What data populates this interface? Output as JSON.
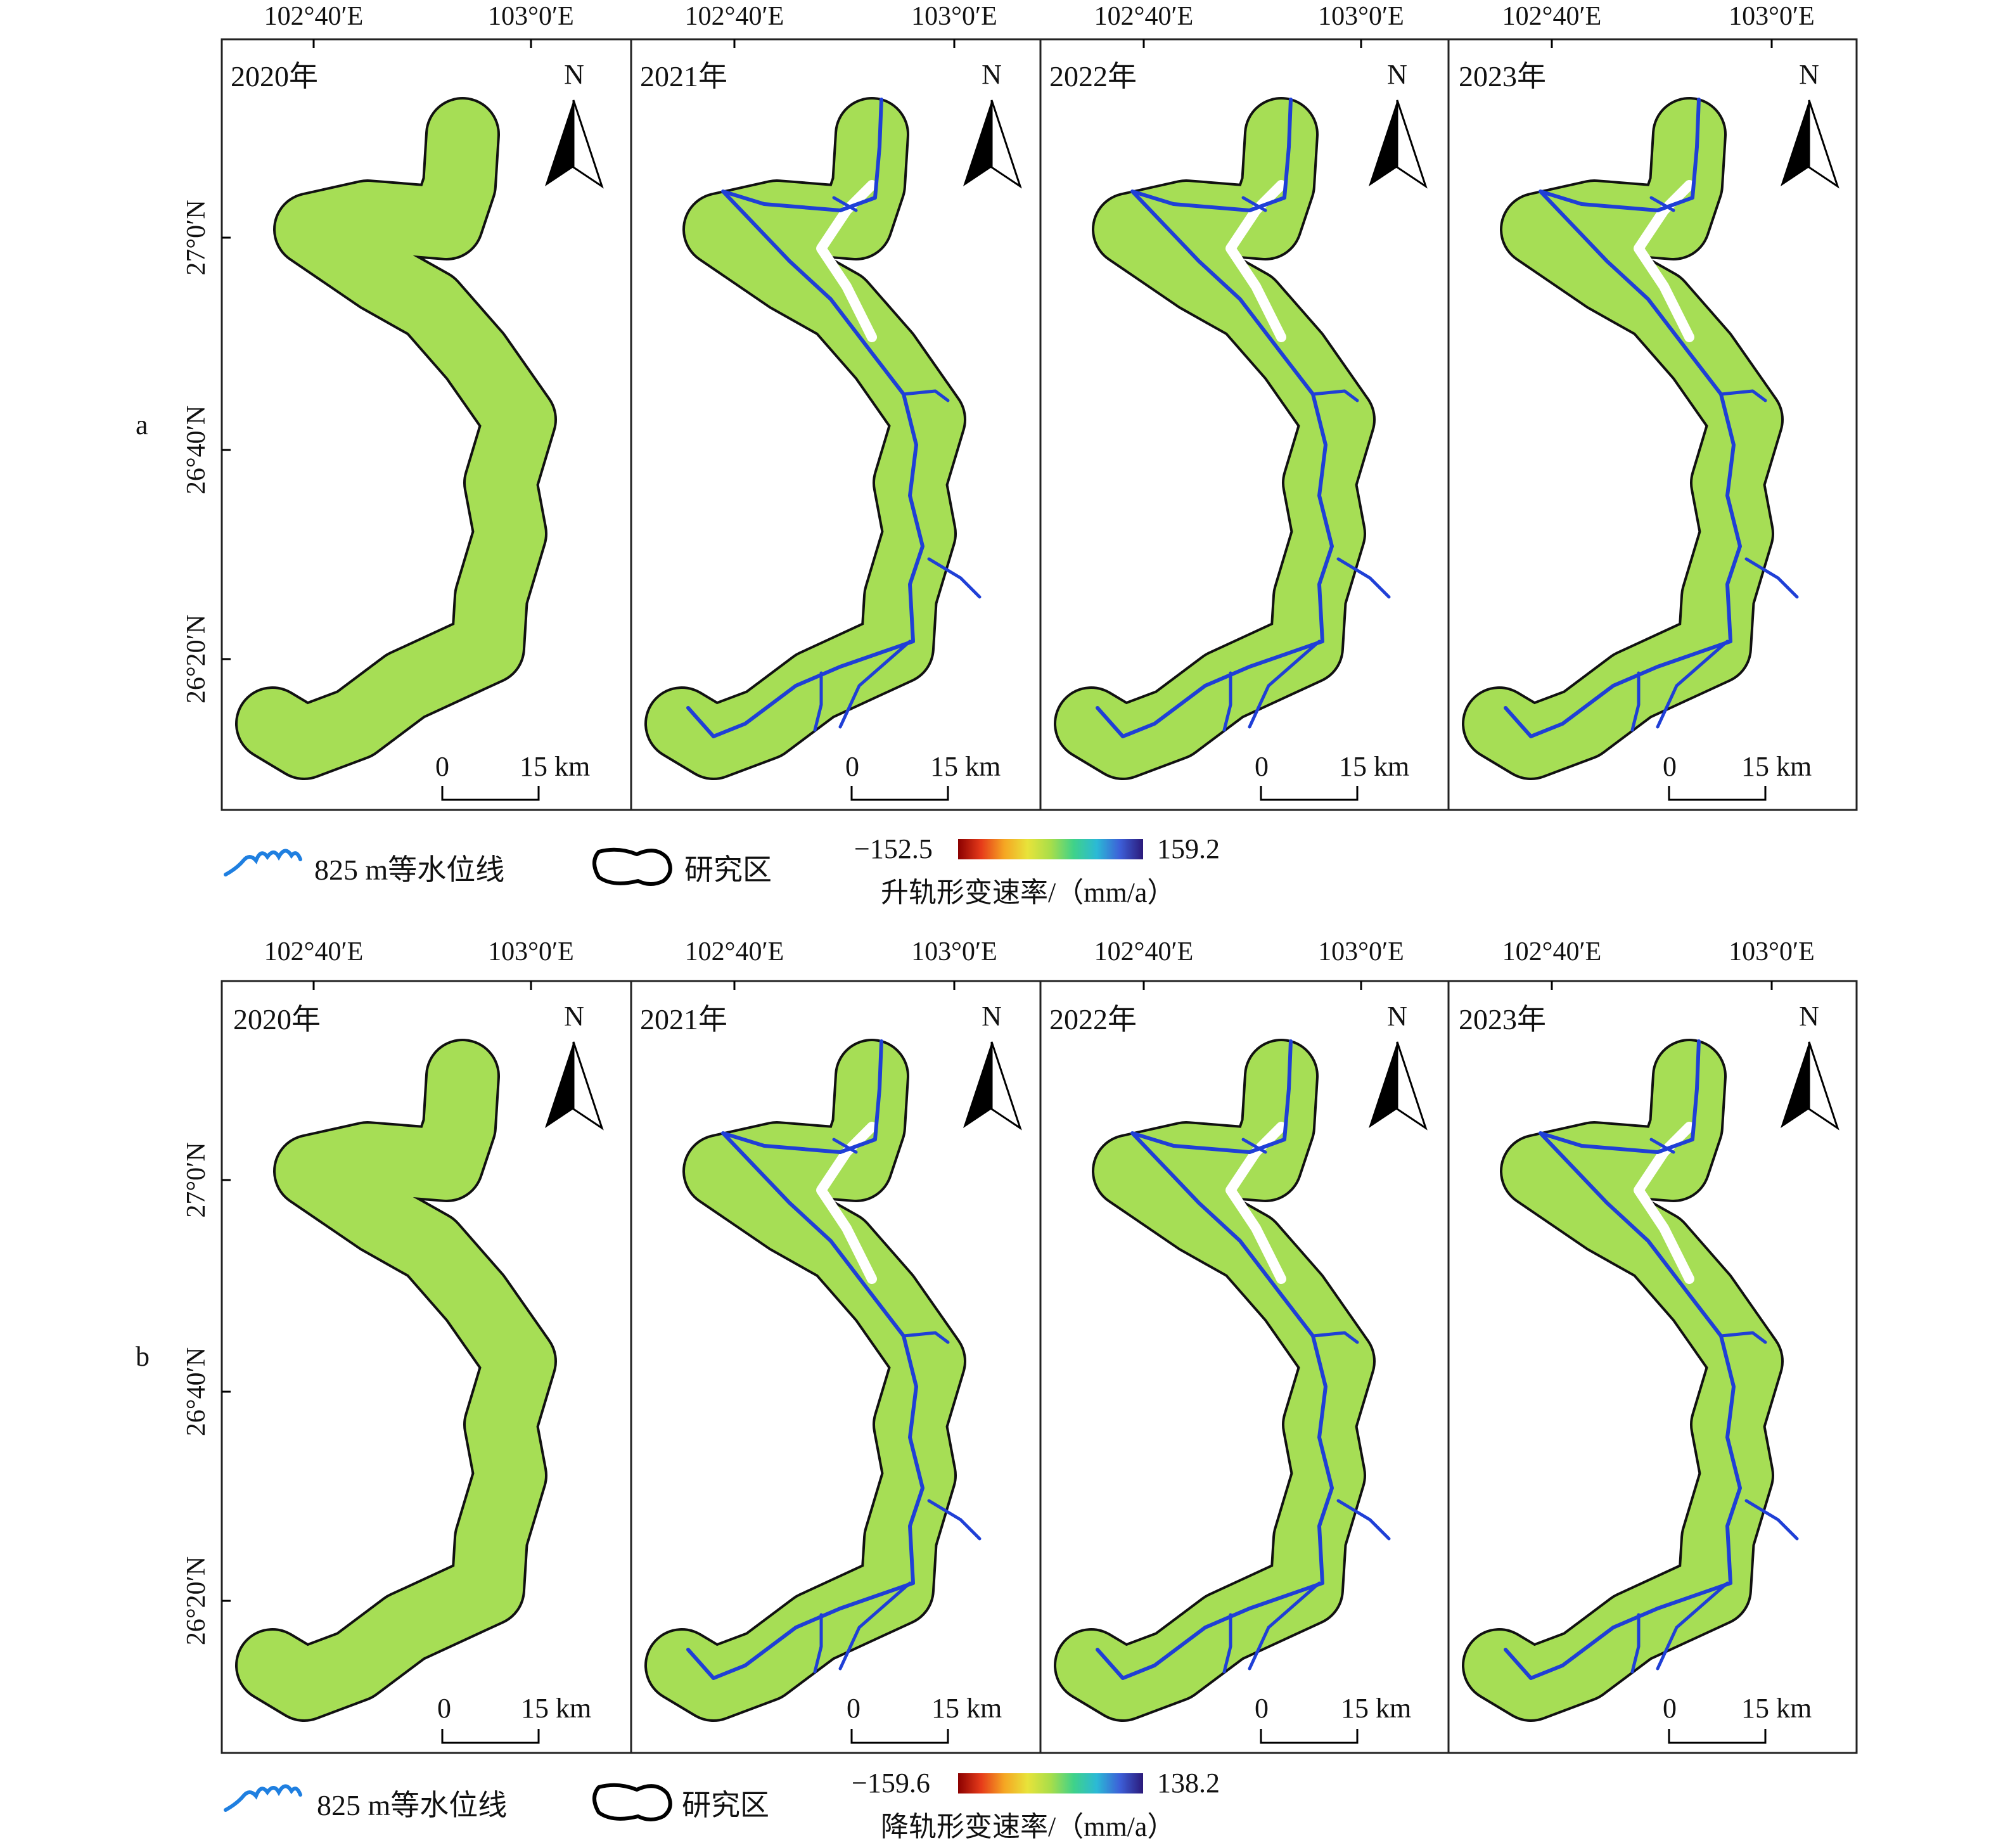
{
  "panels": {
    "a": {
      "letter": "a",
      "years": [
        "2020年",
        "2021年",
        "2022年",
        "2023年"
      ],
      "lon_labels": [
        "102°40′E",
        "103°0′E"
      ],
      "lat_labels": [
        "27°0′N",
        "26°40′N",
        "26°20′N"
      ],
      "north": "N",
      "scale_zero": "0",
      "scale_end": "15 km",
      "legend": {
        "contour_label": "825 m等水位线",
        "study_area_label": "研究区",
        "colorbar_min": "−152.5",
        "colorbar_max": "159.2",
        "colorbar_title": "升轨形变速率/（mm/a）"
      }
    },
    "b": {
      "letter": "b",
      "years": [
        "2020年",
        "2021年",
        "2022年",
        "2023年"
      ],
      "lon_labels": [
        "102°40′E",
        "103°0′E"
      ],
      "lat_labels": [
        "27°0′N",
        "26°40′N",
        "26°20′N"
      ],
      "north": "N",
      "scale_zero": "0",
      "scale_end": "15 km",
      "legend": {
        "contour_label": "825 m等水位线",
        "study_area_label": "研究区",
        "colorbar_min": "−159.6",
        "colorbar_max": "138.2",
        "colorbar_title": "降轨形变速率/（mm/a）"
      }
    }
  },
  "colors": {
    "region_fill": "#a6de55",
    "region_stroke": "#111111",
    "reservoir_line": "#1f3fd6",
    "frame": "#222222",
    "colorbar": [
      "#8b0000",
      "#e63b1a",
      "#f5a623",
      "#e8e33a",
      "#a8de4a",
      "#3fd28a",
      "#2bb9d6",
      "#3d5fd8",
      "#2b1a7a"
    ]
  },
  "icons": [
    "north-arrow-icon",
    "scale-bar-icon",
    "contour-legend-icon",
    "study-area-legend-icon"
  ]
}
